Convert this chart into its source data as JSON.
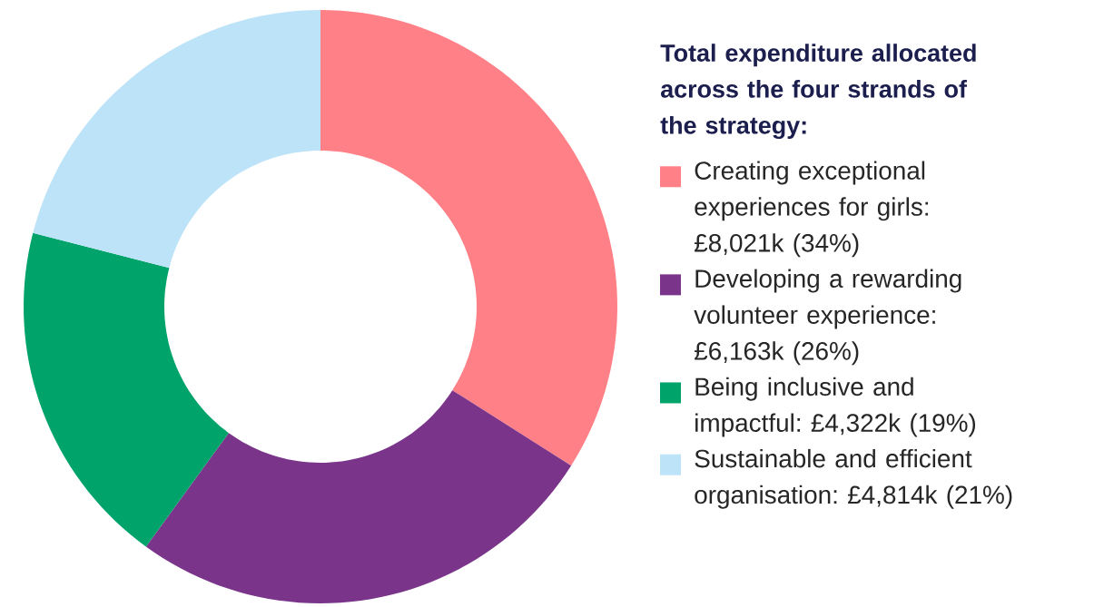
{
  "chart_data": {
    "type": "donut",
    "title": "Total expenditure allocated across the four strands of the strategy:",
    "categories": [
      "Creating exceptional experiences for girls: £8,021k (34%)",
      "Developing a rewarding volunteer experience: £6,163k (26%)",
      "Being inclusive and impactful: £4,322k (19%)",
      "Sustainable and efficient organisation: £4,814k (21%)"
    ],
    "values": [
      34,
      26,
      19,
      21
    ],
    "colors": [
      "#ff8087",
      "#7a358b",
      "#00a36a",
      "#bde3f8"
    ],
    "legend": "right"
  }
}
